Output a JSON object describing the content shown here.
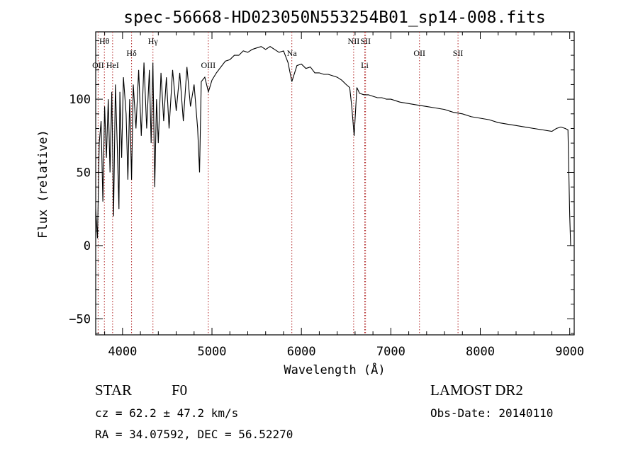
{
  "chart_data": {
    "type": "line",
    "title": "spec-56668-HD023050N553254B01_sp14-008.fits",
    "xlabel": "Wavelength (Å)",
    "ylabel": "Flux (relative)",
    "xlim": [
      3700,
      9050
    ],
    "ylim": [
      -61,
      146
    ],
    "x_ticks": [
      4000,
      5000,
      6000,
      7000,
      8000,
      9000
    ],
    "y_ticks": [
      -50,
      0,
      50,
      100
    ],
    "grid": false,
    "series": [
      {
        "x": [
          3700,
          3720,
          3740,
          3760,
          3780,
          3800,
          3820,
          3840,
          3860,
          3880,
          3900,
          3920,
          3940,
          3960,
          3970,
          3990,
          4010,
          4040,
          4060,
          4080,
          4101,
          4120,
          4150,
          4180,
          4210,
          4240,
          4270,
          4300,
          4320,
          4340,
          4360,
          4380,
          4400,
          4430,
          4460,
          4490,
          4520,
          4560,
          4600,
          4640,
          4680,
          4720,
          4760,
          4800,
          4840,
          4861,
          4880,
          4920,
          4960,
          5000,
          5050,
          5100,
          5150,
          5200,
          5250,
          5300,
          5350,
          5400,
          5450,
          5500,
          5550,
          5600,
          5650,
          5700,
          5750,
          5800,
          5850,
          5893,
          5950,
          6000,
          6050,
          6100,
          6150,
          6200,
          6250,
          6300,
          6350,
          6400,
          6450,
          6500,
          6540,
          6563,
          6590,
          6620,
          6650,
          6700,
          6750,
          6800,
          6850,
          6900,
          6950,
          7000,
          7100,
          7200,
          7300,
          7400,
          7500,
          7600,
          7700,
          7800,
          7900,
          8000,
          8100,
          8200,
          8300,
          8400,
          8500,
          8600,
          8700,
          8800,
          8850,
          8900,
          8950,
          8980,
          9000,
          9010
        ],
        "y": [
          25,
          5,
          70,
          85,
          30,
          95,
          60,
          100,
          50,
          105,
          20,
          110,
          70,
          25,
          105,
          60,
          115,
          90,
          45,
          100,
          45,
          110,
          80,
          120,
          75,
          125,
          80,
          120,
          70,
          125,
          40,
          100,
          70,
          118,
          85,
          115,
          80,
          120,
          92,
          118,
          85,
          122,
          95,
          110,
          80,
          50,
          112,
          115,
          105,
          113,
          118,
          122,
          126,
          127,
          130,
          130,
          133,
          132,
          134,
          135,
          136,
          134,
          136,
          134,
          132,
          133,
          125,
          112,
          123,
          124,
          121,
          122,
          118,
          118,
          117,
          117,
          116,
          115,
          113,
          110,
          108,
          95,
          75,
          108,
          104,
          103,
          103,
          102,
          101,
          101,
          100,
          100,
          98,
          97,
          96,
          95,
          94,
          93,
          91,
          90,
          88,
          87,
          86,
          84,
          83,
          82,
          81,
          80,
          79,
          78,
          80,
          81,
          80,
          79,
          20,
          0
        ]
      }
    ],
    "line_markers": [
      {
        "label": "Hθ",
        "x": 3797,
        "row": 1
      },
      {
        "label": "OII",
        "x": 3727,
        "row": 3
      },
      {
        "label": "HeI",
        "x": 3889,
        "row": 3
      },
      {
        "label": "Hδ",
        "x": 4101,
        "row": 2
      },
      {
        "label": "Hγ",
        "x": 4340,
        "row": 1
      },
      {
        "label": "OIII",
        "x": 4959,
        "row": 3
      },
      {
        "label": "Na",
        "x": 5893,
        "row": 2
      },
      {
        "label": "NII",
        "x": 6584,
        "row": 1
      },
      {
        "label": "SII",
        "x": 6717,
        "row": 1
      },
      {
        "label": "Li",
        "x": 6708,
        "row": 3
      },
      {
        "label": "OII",
        "x": 7320,
        "row": 2
      },
      {
        "label": "SII",
        "x": 7751,
        "row": 2
      }
    ]
  },
  "info": {
    "class_label": "STAR",
    "subclass": "F0",
    "cz": "cz = 62.2 ± 47.2 km/s",
    "radec": "RA =  34.07592, DEC =  56.52270",
    "survey": "LAMOST DR2",
    "obsdate": "Obs-Date: 20140110"
  }
}
